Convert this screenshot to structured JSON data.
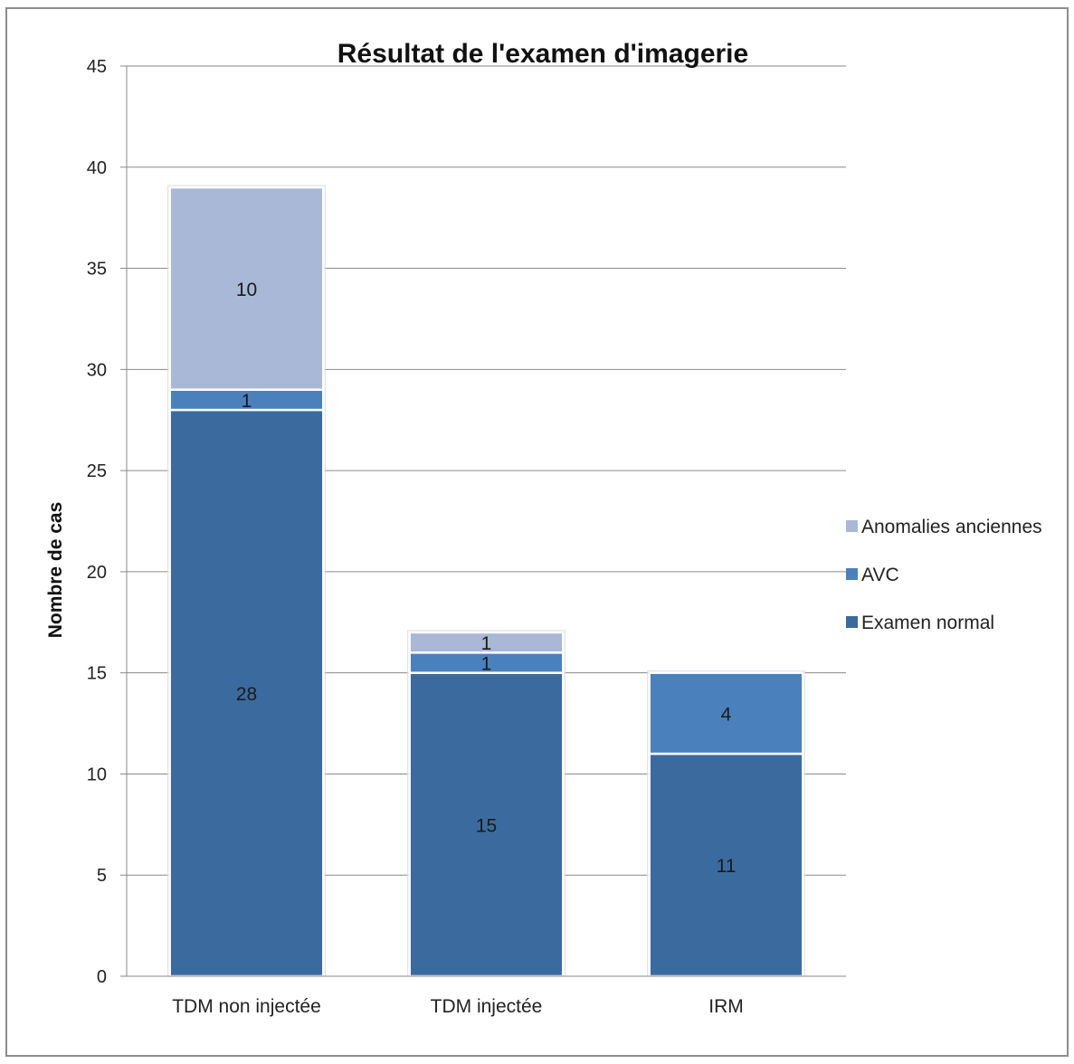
{
  "chart_data": {
    "type": "bar",
    "stacked": true,
    "title": "Résultat de l'examen d'imagerie",
    "xlabel": "",
    "ylabel": "Nombre de cas",
    "ylim": [
      0,
      45
    ],
    "ytick_step": 5,
    "grid": true,
    "legend_position": "right",
    "categories": [
      "TDM non injectée",
      "TDM injectée",
      "IRM"
    ],
    "series": [
      {
        "name": "Examen normal",
        "values": [
          28,
          15,
          11
        ],
        "color": "#3b6b9e"
      },
      {
        "name": "AVC",
        "values": [
          1,
          1,
          4
        ],
        "color": "#4a81bd"
      },
      {
        "name": "Anomalies anciennes",
        "values": [
          10,
          1,
          0
        ],
        "color": "#a9b8d6"
      }
    ]
  }
}
